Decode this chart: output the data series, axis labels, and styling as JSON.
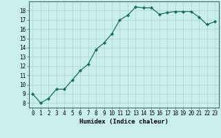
{
  "x": [
    0,
    1,
    2,
    3,
    4,
    5,
    6,
    7,
    8,
    9,
    10,
    11,
    12,
    13,
    14,
    15,
    16,
    17,
    18,
    19,
    20,
    21,
    22,
    23
  ],
  "y": [
    9.0,
    8.0,
    8.5,
    9.5,
    9.5,
    10.5,
    11.5,
    12.2,
    13.8,
    14.5,
    15.5,
    17.0,
    17.5,
    18.4,
    18.3,
    18.3,
    17.6,
    17.8,
    17.9,
    17.9,
    17.9,
    17.3,
    16.5,
    16.8
  ],
  "xlabel": "Humidex (Indice chaleur)",
  "line_color": "#1a6b5a",
  "marker": "D",
  "marker_size": 2.2,
  "bg_color": "#c8eeee",
  "grid_color": "#aed8d8",
  "ylim": [
    7.5,
    19.0
  ],
  "xlim": [
    -0.5,
    23.5
  ],
  "yticks": [
    8,
    9,
    10,
    11,
    12,
    13,
    14,
    15,
    16,
    17,
    18
  ],
  "xticks": [
    0,
    1,
    2,
    3,
    4,
    5,
    6,
    7,
    8,
    9,
    10,
    11,
    12,
    13,
    14,
    15,
    16,
    17,
    18,
    19,
    20,
    21,
    22,
    23
  ],
  "tick_fontsize": 5.5,
  "xlabel_fontsize": 6.5
}
